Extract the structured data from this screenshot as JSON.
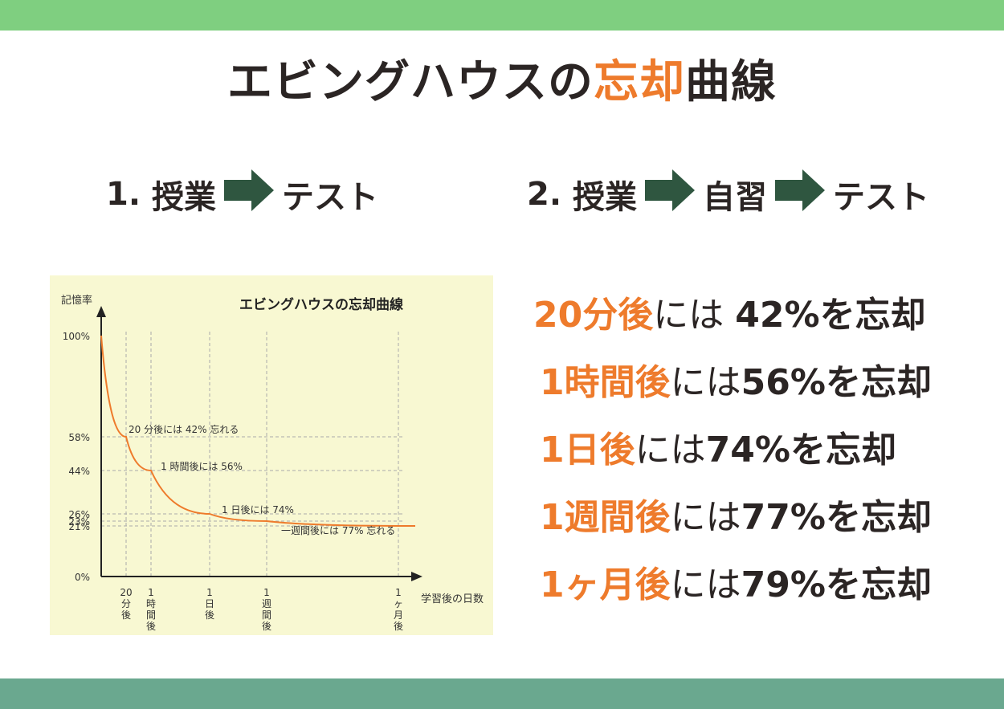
{
  "colors": {
    "top_band": "#7fcf80",
    "bottom_band": "#6aa88f",
    "accent": "#ee7b2c",
    "text": "#2b2524",
    "arrow": "#2f5640",
    "chart_bg": "#f8f8d2",
    "curve": "#ee7b2c"
  },
  "title": {
    "main": "エビングハウスの",
    "accent": "忘却",
    "tail": "曲線"
  },
  "flow1": {
    "num": "1.",
    "a": "授業",
    "b": "テスト"
  },
  "flow2": {
    "num": "2.",
    "a": "授業",
    "b": "自習",
    "c": "テスト"
  },
  "facts": [
    {
      "when": "20分後",
      "mid": "には ",
      "pct": "42%",
      "end": "を忘却"
    },
    {
      "when": "1時間後",
      "mid": "には",
      "pct": "56%",
      "end": "を忘却"
    },
    {
      "when": "1日後",
      "mid": "には",
      "pct": "74%",
      "end": "を忘却"
    },
    {
      "when": "1週間後",
      "mid": "には",
      "pct": "77%",
      "end": "を忘却"
    },
    {
      "when": "1ヶ月後",
      "mid": "には",
      "pct": "79%",
      "end": "を忘却"
    }
  ],
  "chart_data": {
    "type": "line",
    "title": "エビングハウスの忘却曲線",
    "ylabel": "記憶率",
    "xlabel": "学習後の日数",
    "y_ticks": [
      "100%",
      "58%",
      "44%",
      "26%",
      "23%",
      "21%",
      "0%"
    ],
    "x_ticks": [
      "20\n分\n後",
      "1\n時\n間\n後",
      "1\n日\n後",
      "1\n週\n間\n後",
      "1\nヶ\n月\n後"
    ],
    "series": [
      {
        "values": [
          {
            "t": "0",
            "retention": 100
          },
          {
            "t": "20分後",
            "retention": 58
          },
          {
            "t": "1時間後",
            "retention": 44
          },
          {
            "t": "1日後",
            "retention": 26
          },
          {
            "t": "1週間後",
            "retention": 23
          },
          {
            "t": "1ヶ月後",
            "retention": 21
          }
        ]
      }
    ],
    "annotations": [
      {
        "at": "20分後",
        "text": "20 分後には 42% 忘れる"
      },
      {
        "at": "1時間後",
        "text": "1 時間後には 56%"
      },
      {
        "at": "1日後",
        "text": "1 日後には 74%"
      },
      {
        "at": "1週間後",
        "text": "一週間後には 77% 忘れる"
      }
    ],
    "ylim": [
      0,
      100
    ],
    "grid": true
  }
}
